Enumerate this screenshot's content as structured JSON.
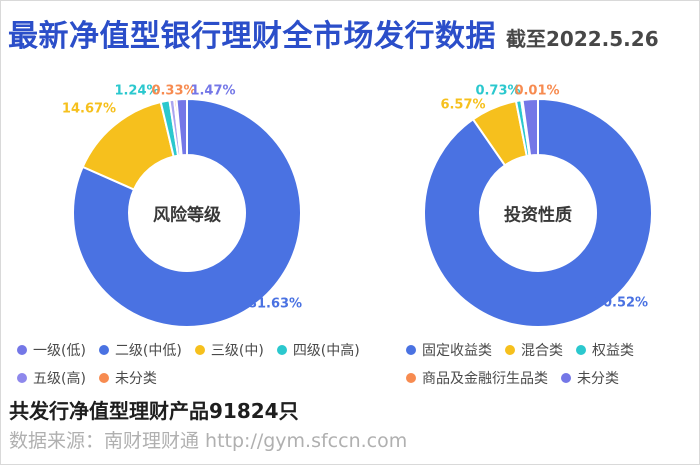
{
  "header": {
    "title": "最新净值型银行理财全市场发行数据",
    "date_note": "截至2022.5.26"
  },
  "colors": {
    "title_blue": "#2b4ec9",
    "pie_blue": "#4a72e2",
    "pie_yellow": "#f6c01d",
    "pie_teal": "#2bc8ce",
    "pie_orange": "#f78b50",
    "pie_periwinkle": "#7477e7",
    "pie_lavender": "#aba5ef",
    "slice_border": "#ffffff"
  },
  "chart_data": [
    {
      "type": "pie",
      "variant": "donut",
      "center_label": "风险等级",
      "slices": [
        {
          "name": "二级(中低)",
          "value": 81.63,
          "label": "81.63%",
          "color": "#4a72e2"
        },
        {
          "name": "三级(中)",
          "value": 14.67,
          "label": "14.67%",
          "color": "#f6c01d"
        },
        {
          "name": "四级(中高)",
          "value": 1.24,
          "label": "1.24%",
          "color": "#2bc8ce"
        },
        {
          "name": "五级(高)",
          "value": 0.66,
          "label": "",
          "color": "#aba5ef"
        },
        {
          "name": "未分类",
          "value": 0.33,
          "label": "0.33%",
          "color": "#f78b50"
        },
        {
          "name": "一级(低)",
          "value": 1.47,
          "label": "1.47%",
          "color": "#7477e7"
        }
      ],
      "legend_rows": [
        [
          {
            "label": "一级(低)",
            "color": "#7477e7"
          },
          {
            "label": "二级(中低)",
            "color": "#4a72e2"
          },
          {
            "label": "三级(中)",
            "color": "#f6c01d"
          },
          {
            "label": "四级(中高)",
            "color": "#2bc8ce"
          }
        ],
        [
          {
            "label": "五级(高)",
            "color": "#8e88ec"
          },
          {
            "label": "未分类",
            "color": "#f78b50"
          }
        ]
      ]
    },
    {
      "type": "pie",
      "variant": "donut",
      "center_label": "投资性质",
      "slices": [
        {
          "name": "固定收益类",
          "value": 90.52,
          "label": "90.52%",
          "color": "#4a72e2"
        },
        {
          "name": "混合类",
          "value": 6.57,
          "label": "6.57%",
          "color": "#f6c01d"
        },
        {
          "name": "权益类",
          "value": 0.73,
          "label": "0.73%",
          "color": "#2bc8ce"
        },
        {
          "name": "商品及金融衍生品类",
          "value": 0.01,
          "label": "0.01%",
          "color": "#f78b50"
        },
        {
          "name": "未分类",
          "value": 2.17,
          "label": "",
          "color": "#7477e7"
        }
      ],
      "legend_rows": [
        [
          {
            "label": "固定收益类",
            "color": "#4a72e2"
          },
          {
            "label": "混合类",
            "color": "#f6c01d"
          },
          {
            "label": "权益类",
            "color": "#2bc8ce"
          }
        ],
        [
          {
            "label": "商品及金融衍生品类",
            "color": "#f78b50"
          },
          {
            "label": "未分类",
            "color": "#7477e7"
          }
        ]
      ]
    }
  ],
  "footer": {
    "summary": "共发行净值型理财产品91824只",
    "source": "数据来源：南财理财通 http://gym.sfccn.com"
  }
}
